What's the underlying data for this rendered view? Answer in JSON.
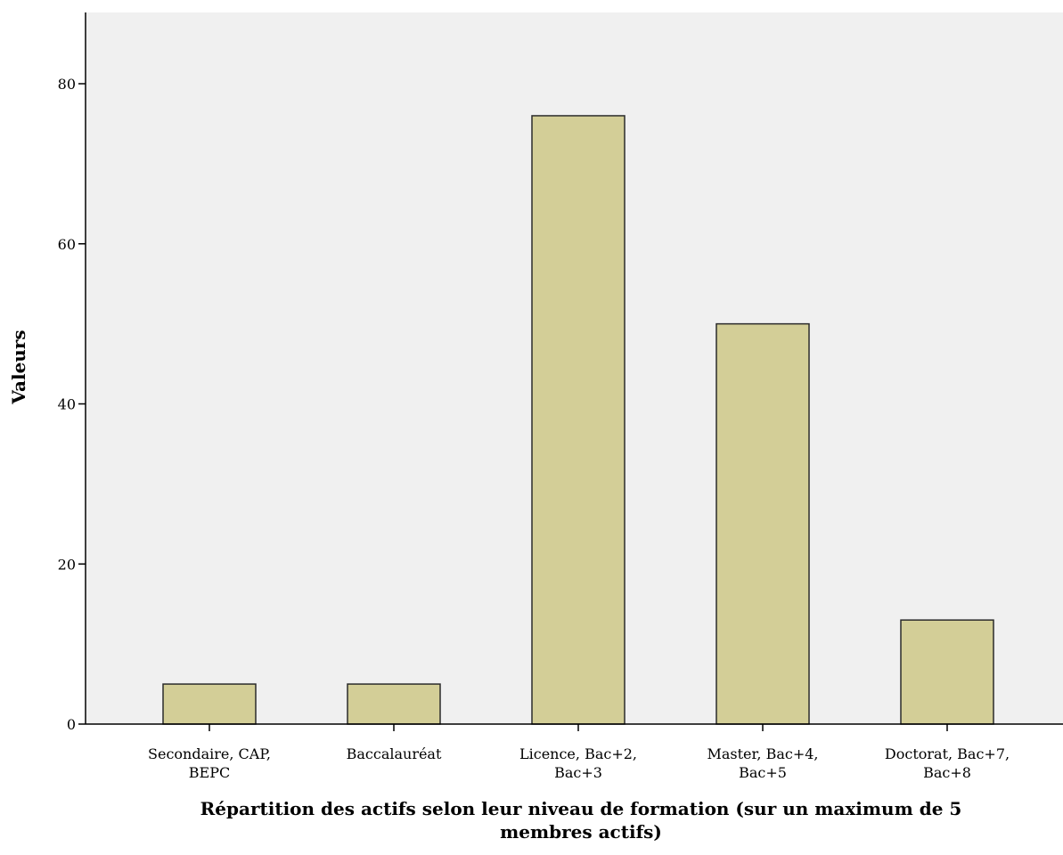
{
  "chart_data": {
    "type": "bar",
    "title": "",
    "xlabel_lines": [
      "Répartition des actifs selon leur niveau de formation (sur un maximum de 5",
      "membres actifs)"
    ],
    "ylabel": "Valeurs",
    "categories": [
      [
        "Secondaire, CAP,",
        "BEPC"
      ],
      [
        "Baccalauréat"
      ],
      [
        "Licence, Bac+2,",
        "Bac+3"
      ],
      [
        "Master, Bac+4,",
        "Bac+5"
      ],
      [
        "Doctorat, Bac+7,",
        "Bac+8"
      ]
    ],
    "values": [
      5,
      5,
      76,
      50,
      13
    ],
    "yticks": [
      "0",
      "20",
      "40",
      "60",
      "80"
    ],
    "ylim": [
      0,
      88
    ],
    "grid": false,
    "legend": "none",
    "colors": {
      "plot_background": "#f0f0f0",
      "bar_fill": "#d3ce97",
      "bar_stroke": "#2b2b2b",
      "axis": "#000000"
    }
  }
}
